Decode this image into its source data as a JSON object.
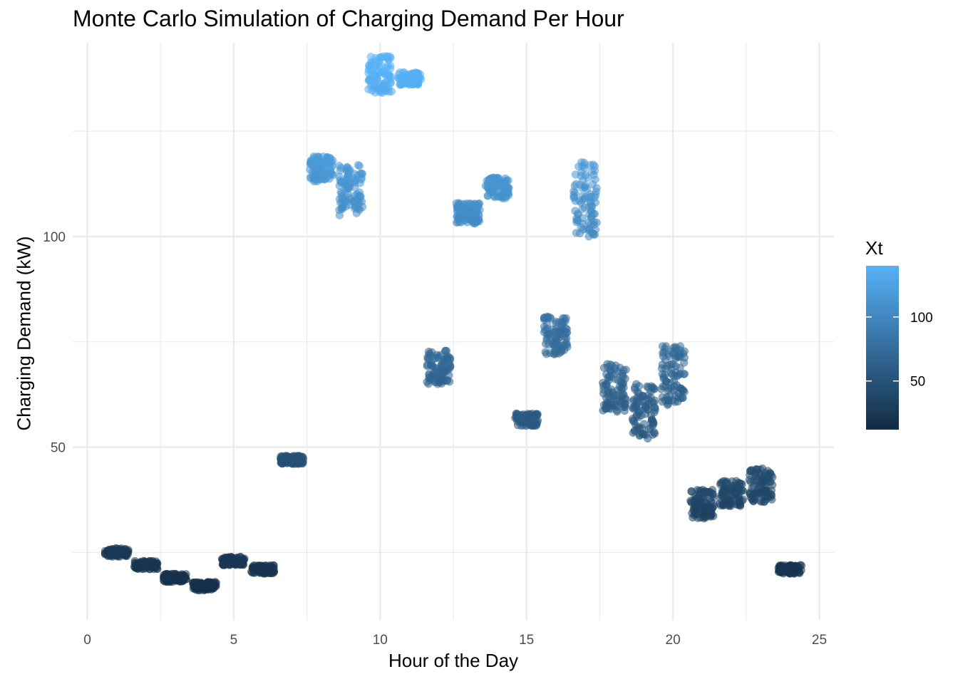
{
  "chart_data": {
    "type": "scatter",
    "title": "Monte Carlo Simulation of Charging Demand Per Hour",
    "xlabel": "Hour of the Day",
    "ylabel": "Charging Demand (kW)",
    "xlim": [
      -0.5,
      25.5
    ],
    "ylim": [
      9,
      146
    ],
    "x_ticks": [
      0,
      5,
      10,
      15,
      20,
      25
    ],
    "y_ticks": [
      50,
      100
    ],
    "grid": true,
    "legend": {
      "title": "Xt",
      "type": "colorbar",
      "position": "right",
      "range": [
        12,
        140
      ],
      "ticks": [
        50,
        100
      ],
      "color_low": "#132B43",
      "color_high": "#56B1F7"
    },
    "point_alpha": 0.55,
    "clusters": [
      {
        "hour": 1,
        "y_min": 24,
        "y_max": 26
      },
      {
        "hour": 2,
        "y_min": 21,
        "y_max": 23
      },
      {
        "hour": 3,
        "y_min": 18,
        "y_max": 20
      },
      {
        "hour": 4,
        "y_min": 16,
        "y_max": 18
      },
      {
        "hour": 5,
        "y_min": 22,
        "y_max": 24
      },
      {
        "hour": 6,
        "y_min": 20,
        "y_max": 22
      },
      {
        "hour": 7,
        "y_min": 46,
        "y_max": 48
      },
      {
        "hour": 8,
        "y_min": 113,
        "y_max": 119
      },
      {
        "hour": 9,
        "y_min": 105,
        "y_max": 117
      },
      {
        "hour": 10,
        "y_min": 134,
        "y_max": 143
      },
      {
        "hour": 11,
        "y_min": 136,
        "y_max": 139
      },
      {
        "hour": 12,
        "y_min": 65,
        "y_max": 73
      },
      {
        "hour": 13,
        "y_min": 103,
        "y_max": 108
      },
      {
        "hour": 14,
        "y_min": 109,
        "y_max": 114
      },
      {
        "hour": 15,
        "y_min": 55,
        "y_max": 58
      },
      {
        "hour": 16,
        "y_min": 72,
        "y_max": 81
      },
      {
        "hour": 17,
        "y_min": 100,
        "y_max": 118
      },
      {
        "hour": 18,
        "y_min": 58,
        "y_max": 70
      },
      {
        "hour": 19,
        "y_min": 52,
        "y_max": 65
      },
      {
        "hour": 20,
        "y_min": 60,
        "y_max": 74
      },
      {
        "hour": 21,
        "y_min": 33,
        "y_max": 40
      },
      {
        "hour": 22,
        "y_min": 36,
        "y_max": 42
      },
      {
        "hour": 23,
        "y_min": 37,
        "y_max": 45
      },
      {
        "hour": 24,
        "y_min": 20,
        "y_max": 22
      }
    ]
  }
}
